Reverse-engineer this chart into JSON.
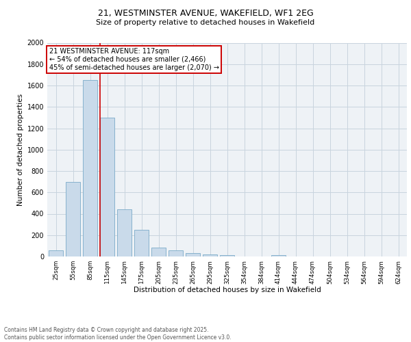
{
  "title1": "21, WESTMINSTER AVENUE, WAKEFIELD, WF1 2EG",
  "title2": "Size of property relative to detached houses in Wakefield",
  "xlabel": "Distribution of detached houses by size in Wakefield",
  "ylabel": "Number of detached properties",
  "bar_color": "#c9daea",
  "bar_edge_color": "#7aaac8",
  "categories": [
    "25sqm",
    "55sqm",
    "85sqm",
    "115sqm",
    "145sqm",
    "175sqm",
    "205sqm",
    "235sqm",
    "265sqm",
    "295sqm",
    "325sqm",
    "354sqm",
    "384sqm",
    "414sqm",
    "444sqm",
    "474sqm",
    "504sqm",
    "534sqm",
    "564sqm",
    "594sqm",
    "624sqm"
  ],
  "values": [
    60,
    700,
    1650,
    1300,
    440,
    250,
    85,
    55,
    35,
    20,
    10,
    0,
    0,
    10,
    0,
    0,
    0,
    0,
    0,
    0,
    0
  ],
  "vline_color": "#cc0000",
  "annotation_text": "21 WESTMINSTER AVENUE: 117sqm\n← 54% of detached houses are smaller (2,466)\n45% of semi-detached houses are larger (2,070) →",
  "annotation_box_color": "#ffffff",
  "annotation_box_edge": "#cc0000",
  "ylim": [
    0,
    2000
  ],
  "yticks": [
    0,
    200,
    400,
    600,
    800,
    1000,
    1200,
    1400,
    1600,
    1800,
    2000
  ],
  "grid_color": "#c8d4de",
  "footer": "Contains HM Land Registry data © Crown copyright and database right 2025.\nContains public sector information licensed under the Open Government Licence v3.0.",
  "bg_color": "#eef2f6"
}
